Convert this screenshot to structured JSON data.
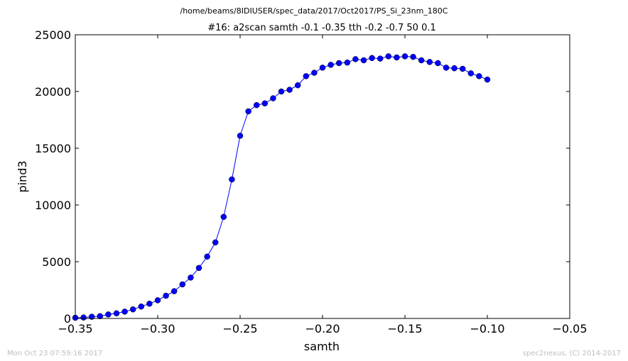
{
  "chart_data": {
    "type": "line",
    "title": "#16: a2scan  samth -0.1 -0.35  tth -0.2 -0.7  50 0.1",
    "suptitle": "/home/beams/8IDIUSER/spec_data/2017/Oct2017/PS_Si_23nm_180C",
    "xlabel": "samth",
    "ylabel": "pind3",
    "xlim": [
      -0.35,
      -0.05
    ],
    "ylim": [
      0,
      25000
    ],
    "xticks": [
      -0.35,
      -0.3,
      -0.25,
      -0.2,
      -0.15,
      -0.1,
      -0.05
    ],
    "xtick_labels": [
      "−0.35",
      "−0.30",
      "−0.25",
      "−0.20",
      "−0.15",
      "−0.10",
      "−0.05"
    ],
    "yticks": [
      0,
      5000,
      10000,
      15000,
      20000,
      25000
    ],
    "ytick_labels": [
      "0",
      "5000",
      "10000",
      "15000",
      "20000",
      "25000"
    ],
    "grid": false,
    "line_color": "#0000ff",
    "series": [
      {
        "x": [
          -0.35,
          -0.345,
          -0.34,
          -0.335,
          -0.33,
          -0.325,
          -0.32,
          -0.315,
          -0.31,
          -0.305,
          -0.3,
          -0.295,
          -0.29,
          -0.285,
          -0.28,
          -0.275,
          -0.27,
          -0.265,
          -0.26,
          -0.255,
          -0.25,
          -0.245,
          -0.24,
          -0.235,
          -0.23,
          -0.225,
          -0.22,
          -0.215,
          -0.21,
          -0.205,
          -0.2,
          -0.195,
          -0.19,
          -0.185,
          -0.18,
          -0.175,
          -0.17,
          -0.165,
          -0.16,
          -0.155,
          -0.15,
          -0.145,
          -0.14,
          -0.135,
          -0.13,
          -0.125,
          -0.12,
          -0.115,
          -0.11,
          -0.105,
          -0.1
        ],
        "values": [
          60,
          80,
          150,
          200,
          350,
          450,
          600,
          800,
          1050,
          1300,
          1600,
          2000,
          2400,
          3000,
          3600,
          4450,
          5450,
          6700,
          8950,
          12250,
          16100,
          18250,
          18800,
          18950,
          19400,
          20000,
          20150,
          20550,
          21350,
          21650,
          22100,
          22350,
          22500,
          22550,
          22850,
          22750,
          22950,
          22900,
          23100,
          23000,
          23100,
          23050,
          22750,
          22600,
          22500,
          22100,
          22050,
          22000,
          21600,
          21350,
          21050
        ]
      }
    ]
  },
  "footer": {
    "timestamp": "Mon Oct 23 07:59:16 2017",
    "credit": "spec2nexus, (C) 2014-2017"
  }
}
